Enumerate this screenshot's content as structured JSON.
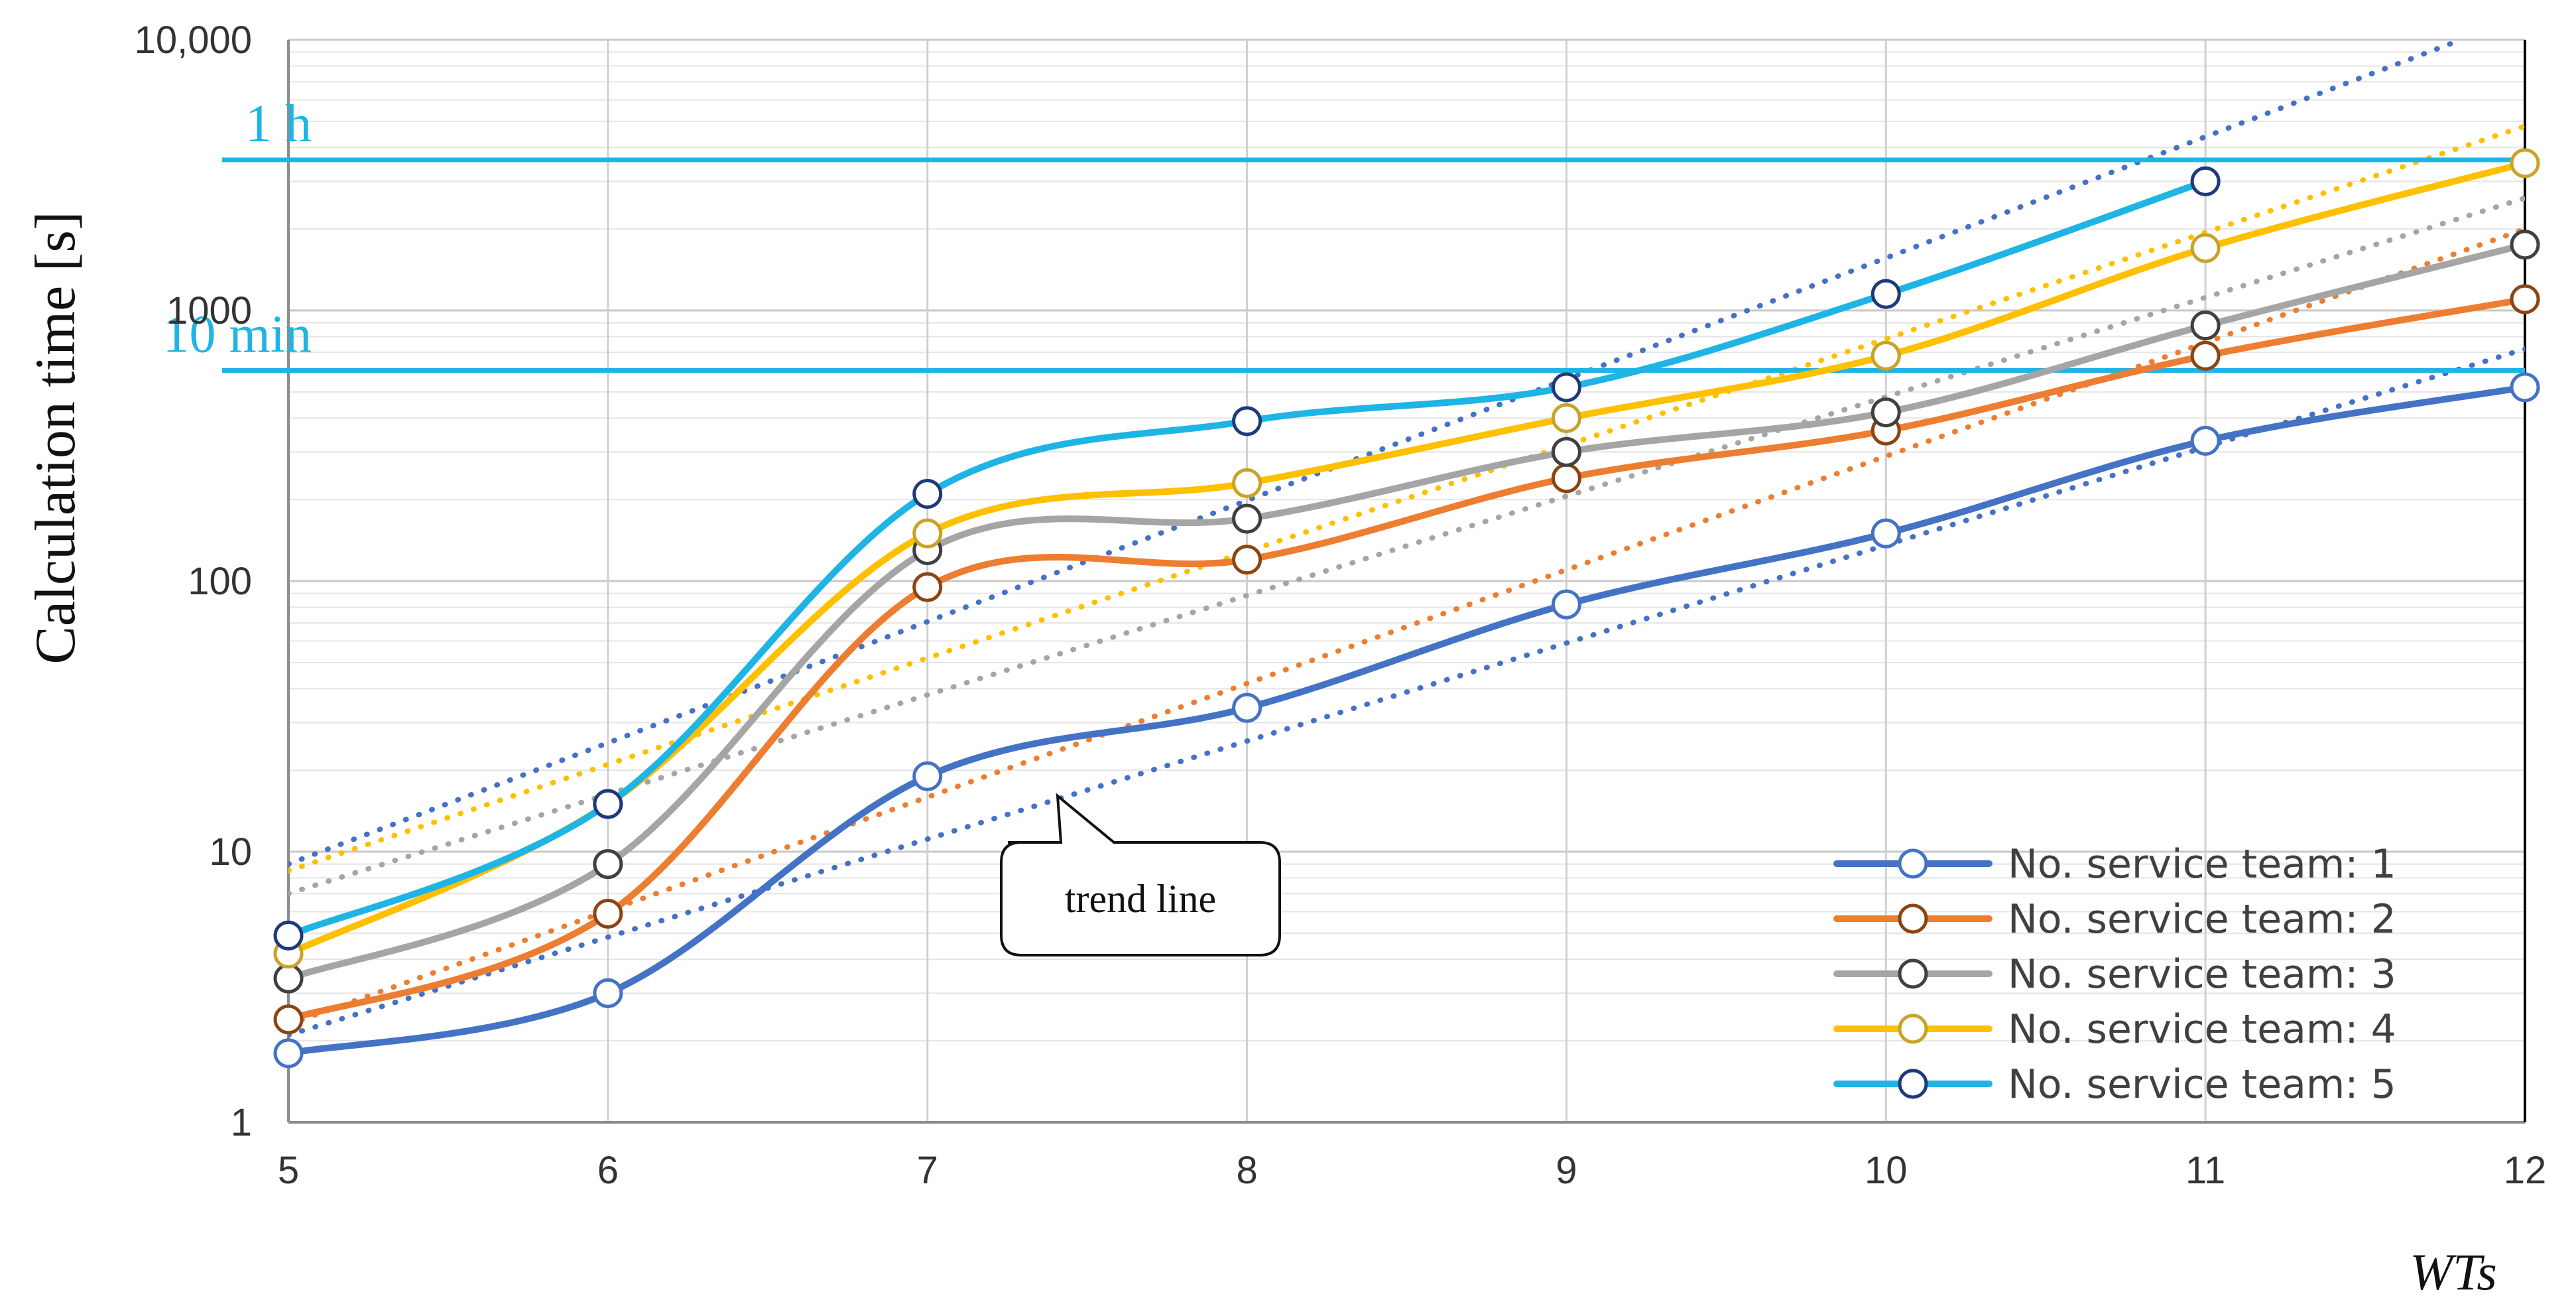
{
  "chart_data": {
    "type": "line",
    "xlabel": "WTs",
    "ylabel": "Calculation time [s]",
    "x": [
      5,
      6,
      7,
      8,
      9,
      10,
      11,
      12
    ],
    "y_scale": "log",
    "ylim": [
      1,
      10000
    ],
    "y_ticks": [
      1,
      10,
      100,
      1000,
      10000
    ],
    "y_tick_labels": [
      "1",
      "10",
      "100",
      "1000",
      "10,000"
    ],
    "x_tick_labels": [
      "5",
      "6",
      "7",
      "8",
      "9",
      "10",
      "11",
      "12"
    ],
    "grid": true,
    "legend_position": "bottom-right",
    "series": [
      {
        "name": "No. service team: 1",
        "color": "#4472C4",
        "marker_fill": "#ffffff",
        "marker_edge": "#4472C4",
        "values": [
          1.8,
          3.0,
          19,
          34,
          82,
          150,
          330,
          520
        ]
      },
      {
        "name": "No. service team: 2",
        "color": "#ED7D31",
        "marker_fill": "#ffffff",
        "marker_edge": "#8B4513",
        "values": [
          2.4,
          5.9,
          95,
          120,
          240,
          360,
          680,
          1100
        ]
      },
      {
        "name": "No. service team: 3",
        "color": "#A5A5A5",
        "marker_fill": "#ffffff",
        "marker_edge": "#404040",
        "values": [
          3.4,
          9.0,
          130,
          170,
          300,
          420,
          880,
          1750
        ]
      },
      {
        "name": "No. service team: 4",
        "color": "#FFC000",
        "marker_fill": "#ffffff",
        "marker_edge": "#C9A227",
        "values": [
          4.2,
          15,
          150,
          230,
          400,
          680,
          1700,
          3500
        ]
      },
      {
        "name": "No. service team: 5",
        "color": "#1FB4E6",
        "marker_fill": "#ffffff",
        "marker_edge": "#1F3A7A",
        "values": [
          4.9,
          15,
          210,
          390,
          520,
          1150,
          3000,
          null
        ]
      }
    ],
    "trend_lines": [
      {
        "series": "No. service team: 1",
        "color": "#4472C4",
        "start": [
          5,
          2.1
        ],
        "end": [
          12,
          720
        ]
      },
      {
        "series": "No. service team: 2",
        "color": "#ED7D31",
        "start": [
          5,
          2.3
        ],
        "end": [
          12,
          2000
        ]
      },
      {
        "series": "No. service team: 3",
        "color": "#A5A5A5",
        "start": [
          5,
          7.0
        ],
        "end": [
          12,
          2600
        ]
      },
      {
        "series": "No. service team: 4",
        "color": "#FFC000",
        "start": [
          5,
          8.5
        ],
        "end": [
          12,
          4800
        ]
      },
      {
        "series": "No. service team: 5",
        "color": "#4472C4",
        "start": [
          5,
          9.0
        ],
        "end": [
          11.8,
          10000
        ]
      }
    ],
    "reference_lines": [
      {
        "label": "1 h",
        "value": 3600,
        "color": "#1FB4E6"
      },
      {
        "label": "10 min",
        "value": 600,
        "color": "#1FB4E6"
      }
    ],
    "annotations": [
      {
        "text": "trend line",
        "points_to": [
          7.4,
          16
        ]
      }
    ]
  }
}
